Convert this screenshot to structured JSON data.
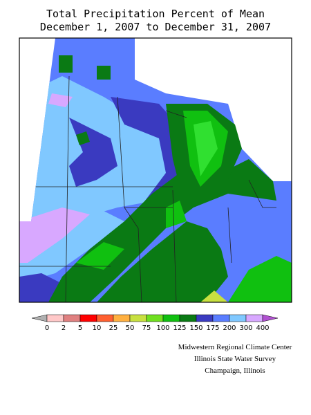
{
  "title": {
    "line1": "Total Precipitation Percent of Mean",
    "line2": "December 1, 2007 to December 31, 2007"
  },
  "legend": {
    "ticks": [
      0,
      2,
      5,
      10,
      25,
      50,
      75,
      100,
      125,
      150,
      175,
      200,
      300,
      400
    ],
    "colors": [
      "#b0b0b0",
      "#ffc8c8",
      "#e08080",
      "#ff0000",
      "#ff6030",
      "#ffb040",
      "#c8e040",
      "#70e020",
      "#10c010",
      "#0a7a14",
      "#3a3ac0",
      "#5a7dff",
      "#80c8ff",
      "#d8a8ff",
      "#b050d0"
    ]
  },
  "credits": [
    "Midwestern Regional Climate Center",
    "Illinois State Water Survey",
    "Champaign, Illinois"
  ]
}
